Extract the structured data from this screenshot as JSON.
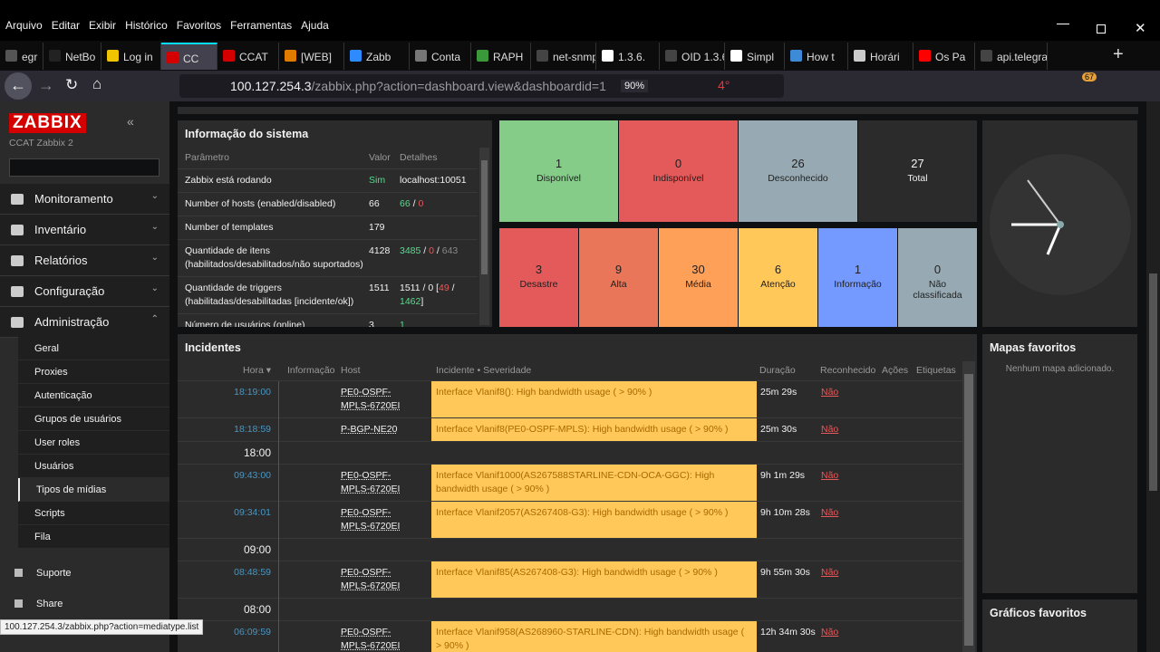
{
  "menubar": [
    "Arquivo",
    "Editar",
    "Exibir",
    "Histórico",
    "Favoritos",
    "Ferramentas",
    "Ajuda"
  ],
  "tabs": [
    "egr",
    "NetBo",
    "Log in",
    "CC",
    "CCAT",
    "[WEB]",
    "Zabb",
    "Conta",
    "RAPH",
    "net-snmp",
    "1.3.6.",
    "OID 1.3.6.",
    "Simpl",
    "How t",
    "Horári",
    "Os Pa",
    "api.telegra"
  ],
  "tab_colors": [
    "#555",
    "#222",
    "#f0c400",
    "#d40000",
    "#d40000",
    "#e07b00",
    "#2e8bff",
    "#777",
    "#3a9a3a",
    "#444",
    "#fff",
    "#444",
    "#fff",
    "#3d8bd6",
    "#ccc",
    "#f00",
    "#444"
  ],
  "active_tab": 3,
  "url_host": "100.127.254.3",
  "url_path": "/zabbix.php?action=dashboard.view&dashboardid=1",
  "zoom": "90%",
  "temp_badge": "4°",
  "ext_badge": "67",
  "sidebar": {
    "logo": "ZABBIX",
    "subtitle": "CCAT Zabbix 2",
    "menu": [
      "Monitoramento",
      "Inventário",
      "Relatórios",
      "Configuração",
      "Administração"
    ],
    "submenu": [
      "Geral",
      "Proxies",
      "Autenticação",
      "Grupos de usuários",
      "User roles",
      "Usuários",
      "Tipos de mídias",
      "Scripts",
      "Fila"
    ],
    "footer": [
      "Suporte",
      "Share"
    ]
  },
  "system_info": {
    "title": "Informação do sistema",
    "headers": [
      "Parâmetro",
      "Valor",
      "Detalhes"
    ],
    "rows": [
      {
        "param": "Zabbix está rodando",
        "value": "Sim",
        "value_color": "#59db8f",
        "details": [
          "localhost:10051"
        ],
        "details_colors": [
          "#f2f2f2"
        ]
      },
      {
        "param": "Number of hosts (enabled/disabled)",
        "value": "66",
        "value_color": "#f2f2f2",
        "details": [
          "66",
          " / ",
          "0"
        ],
        "details_colors": [
          "#59db8f",
          "#f2f2f2",
          "#e45959"
        ]
      },
      {
        "param": "Number of templates",
        "value": "179",
        "value_color": "#f2f2f2",
        "details": [],
        "details_colors": []
      },
      {
        "param": "Quantidade de itens (habilitados/desabilitados/não suportados)",
        "value": "4128",
        "value_color": "#f2f2f2",
        "details": [
          "3485",
          " / ",
          "0",
          " / ",
          "643"
        ],
        "details_colors": [
          "#59db8f",
          "#f2f2f2",
          "#e45959",
          "#f2f2f2",
          "#888"
        ]
      },
      {
        "param": "Quantidade de triggers (habilitadas/desabilitadas [incidente/ok])",
        "value": "1511",
        "value_color": "#f2f2f2",
        "details": [
          "1511 / 0 [",
          "49",
          " / ",
          "1462",
          "]"
        ],
        "details_colors": [
          "#f2f2f2",
          "#e45959",
          "#f2f2f2",
          "#59db8f",
          "#f2f2f2"
        ]
      },
      {
        "param": "Número de usuários (online)",
        "value": "3",
        "value_color": "#f2f2f2",
        "details": [
          "1"
        ],
        "details_colors": [
          "#59db8f"
        ]
      }
    ]
  },
  "host_availability": [
    {
      "value": "1",
      "label": "Disponível",
      "color": "#86cc89"
    },
    {
      "value": "0",
      "label": "Indisponível",
      "color": "#e45959"
    },
    {
      "value": "26",
      "label": "Desconhecido",
      "color": "#97aab3"
    },
    {
      "value": "27",
      "label": "Total",
      "color": "#2b2b2b"
    }
  ],
  "problems_by_severity": [
    {
      "value": "3",
      "label": "Desastre",
      "color": "#e45959"
    },
    {
      "value": "9",
      "label": "Alta",
      "color": "#e97659"
    },
    {
      "value": "30",
      "label": "Média",
      "color": "#ffa059"
    },
    {
      "value": "6",
      "label": "Atenção",
      "color": "#ffc859"
    },
    {
      "value": "1",
      "label": "Informação",
      "color": "#7499ff"
    },
    {
      "value": "0",
      "label": "Não classificada",
      "color": "#97aab3"
    }
  ],
  "incidents": {
    "title": "Incidentes",
    "headers": [
      "Hora ▾",
      "Informação",
      "Host",
      "Incidente • Severidade",
      "Duração",
      "Reconhecido",
      "Ações",
      "Etiquetas"
    ],
    "rows": [
      {
        "time": "18:19:00",
        "host": "PE0-OSPF-MPLS-6720EI",
        "problem": "Interface Vlanif8(): High bandwidth usage ( > 90% )",
        "duration": "25m 29s",
        "ack": "Não"
      },
      {
        "time": "18:18:59",
        "host": "P-BGP-NE20",
        "problem": "Interface Vlanif8(PE0-OSPF-MPLS): High bandwidth usage ( > 90% )",
        "duration": "25m 30s",
        "ack": "Não"
      },
      {
        "separator": "18:00"
      },
      {
        "time": "09:43:00",
        "host": "PE0-OSPF-MPLS-6720EI",
        "problem": "Interface Vlanif1000(AS267588STARLINE-CDN-OCA-GGC): High bandwidth usage ( > 90% )",
        "duration": "9h 1m 29s",
        "ack": "Não"
      },
      {
        "time": "09:34:01",
        "host": "PE0-OSPF-MPLS-6720EI",
        "problem": "Interface Vlanif2057(AS267408-G3): High bandwidth usage ( > 90% )",
        "duration": "9h 10m 28s",
        "ack": "Não"
      },
      {
        "separator": "09:00"
      },
      {
        "time": "08:48:59",
        "host": "PE0-OSPF-MPLS-6720EI",
        "problem": "Interface Vlanif85(AS267408-G3): High bandwidth usage ( > 90% )",
        "duration": "9h 55m 30s",
        "ack": "Não"
      },
      {
        "separator": "08:00"
      },
      {
        "time": "06:09:59",
        "host": "PE0-OSPF-MPLS-6720EI",
        "problem": "Interface Vlanif958(AS268960-STARLINE-CDN): High bandwidth usage ( > 90% )",
        "duration": "12h 34m 30s",
        "ack": "Não"
      }
    ]
  },
  "favorite_maps": {
    "title": "Mapas favoritos",
    "empty": "Nenhum mapa adicionado."
  },
  "favorite_graphs": {
    "title": "Gráficos favoritos"
  },
  "status_url": "100.127.254.3/zabbix.php?action=mediatype.list"
}
